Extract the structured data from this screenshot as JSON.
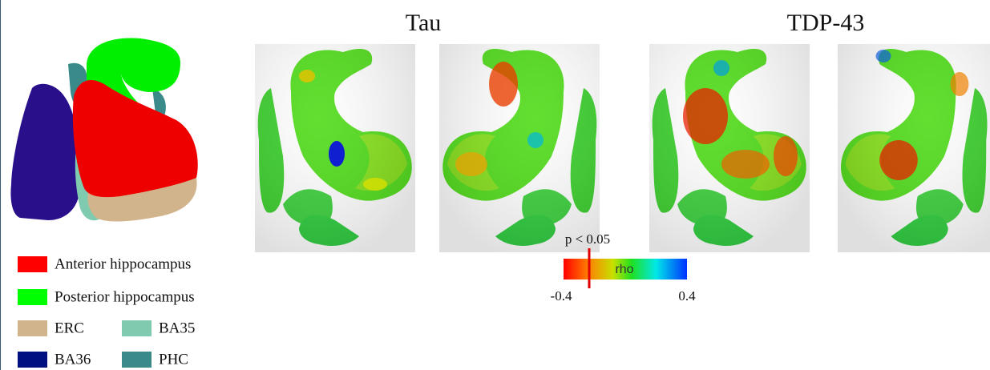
{
  "figure": {
    "titles": [
      "Tau",
      "TDP-43"
    ],
    "legend": [
      {
        "label": "Anterior hippocampus",
        "color": "#ff0000"
      },
      {
        "label": "Posterior hippocampus",
        "color": "#00ff00"
      },
      {
        "label": "ERC",
        "color": "#d2b48c"
      },
      {
        "label": "BA35",
        "color": "#80cbb0"
      },
      {
        "label": "BA36",
        "color": "#001080"
      },
      {
        "label": "PHC",
        "color": "#3a8a8a"
      }
    ],
    "colorbar": {
      "threshold_label": "p < 0.05",
      "label": "rho",
      "min_label": "-0.4",
      "max_label": "0.4"
    }
  }
}
